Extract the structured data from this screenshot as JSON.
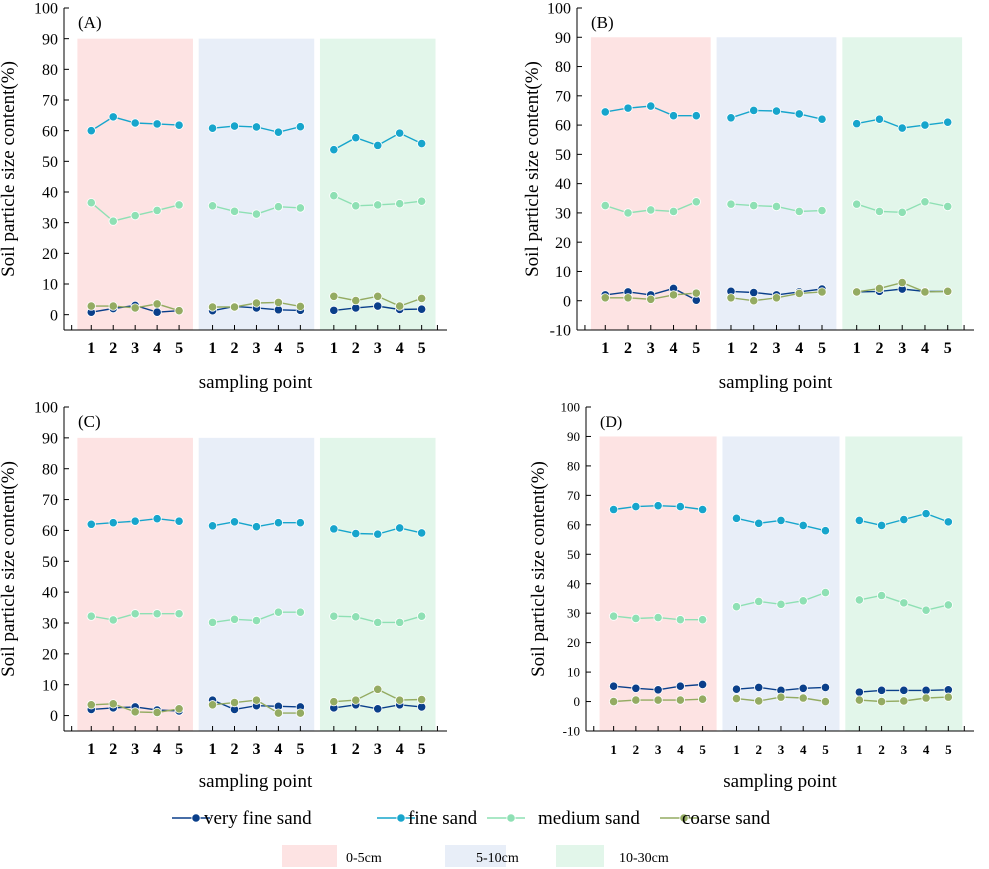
{
  "colors": {
    "very_fine_sand": "#0a3f8a",
    "fine_sand": "#17a5cc",
    "medium_sand": "#8ee0b4",
    "coarse_sand": "#94ab62",
    "depth_0_5": "#fde3e3",
    "depth_5_10": "#e8eef8",
    "depth_10_30": "#e2f6ea"
  },
  "legend": {
    "series": [
      "very fine sand",
      "fine sand",
      "medium sand",
      "coarse sand"
    ],
    "depths": [
      "0-5cm",
      "5-10cm",
      "10-30cm"
    ]
  },
  "chart_data": [
    {
      "type": "line",
      "panel": "(A)",
      "xlabel": "sampling point",
      "ylabel": "Soil particle size content(%)",
      "ylim": [
        -5,
        100
      ],
      "yticks": [
        0,
        10,
        20,
        30,
        40,
        50,
        60,
        70,
        80,
        90,
        100
      ],
      "categories": [
        "1",
        "2",
        "3",
        "4",
        "5"
      ],
      "groups": [
        "0-5cm",
        "5-10cm",
        "10-30cm"
      ],
      "series": [
        {
          "name": "very fine sand",
          "values": [
            [
              0.8,
              2.0,
              3.0,
              0.8,
              1.3
            ],
            [
              1.3,
              2.7,
              2.2,
              1.6,
              1.4
            ],
            [
              1.4,
              2.2,
              2.8,
              1.7,
              1.8
            ]
          ]
        },
        {
          "name": "fine sand",
          "values": [
            [
              60.0,
              64.5,
              62.5,
              62.2,
              61.8
            ],
            [
              60.8,
              61.5,
              61.2,
              59.5,
              61.3
            ],
            [
              53.8,
              57.7,
              55.2,
              59.2,
              55.8
            ]
          ]
        },
        {
          "name": "medium sand",
          "values": [
            [
              36.5,
              30.5,
              32.3,
              34.0,
              35.8
            ],
            [
              35.5,
              33.7,
              32.8,
              35.2,
              34.8
            ],
            [
              38.8,
              35.5,
              35.8,
              36.2,
              37.0
            ]
          ]
        },
        {
          "name": "coarse sand",
          "values": [
            [
              2.8,
              2.8,
              2.2,
              3.5,
              1.3
            ],
            [
              2.5,
              2.5,
              3.8,
              4.0,
              2.7
            ],
            [
              6.0,
              4.6,
              6.0,
              2.8,
              5.3
            ]
          ]
        }
      ]
    },
    {
      "type": "line",
      "panel": "(B)",
      "xlabel": "sampling point",
      "ylabel": "Soil particle size content(%)",
      "ylim": [
        -10,
        100
      ],
      "yticks": [
        -10,
        0,
        10,
        20,
        30,
        40,
        50,
        60,
        70,
        80,
        90,
        100
      ],
      "categories": [
        "1",
        "2",
        "3",
        "4",
        "5"
      ],
      "groups": [
        "0-5cm",
        "5-10cm",
        "10-30cm"
      ],
      "series": [
        {
          "name": "very fine sand",
          "values": [
            [
              2.0,
              3.0,
              2.0,
              4.2,
              0.2
            ],
            [
              3.2,
              2.8,
              2.0,
              3.0,
              4.0
            ],
            [
              3.0,
              3.2,
              4.0,
              3.2,
              3.2
            ]
          ]
        },
        {
          "name": "fine sand",
          "values": [
            [
              64.5,
              65.8,
              66.5,
              63.2,
              63.2
            ],
            [
              62.5,
              65.0,
              64.8,
              63.8,
              62.0
            ],
            [
              60.5,
              62.0,
              59.0,
              60.0,
              61.0
            ]
          ]
        },
        {
          "name": "medium sand",
          "values": [
            [
              32.5,
              30.0,
              31.0,
              30.5,
              33.8
            ],
            [
              33.0,
              32.5,
              32.2,
              30.5,
              30.8
            ],
            [
              33.0,
              30.5,
              30.2,
              33.8,
              32.2
            ]
          ]
        },
        {
          "name": "coarse sand",
          "values": [
            [
              1.0,
              1.0,
              0.5,
              2.0,
              2.6
            ],
            [
              1.0,
              0.0,
              1.0,
              2.5,
              3.0
            ],
            [
              3.0,
              4.2,
              6.2,
              3.0,
              3.2
            ]
          ]
        }
      ]
    },
    {
      "type": "line",
      "panel": "(C)",
      "xlabel": "sampling point",
      "ylabel": "Soil particle size content(%)",
      "ylim": [
        -5,
        100
      ],
      "yticks": [
        0,
        10,
        20,
        30,
        40,
        50,
        60,
        70,
        80,
        90,
        100
      ],
      "categories": [
        "1",
        "2",
        "3",
        "4",
        "5"
      ],
      "groups": [
        "0-5cm",
        "5-10cm",
        "10-30cm"
      ],
      "series": [
        {
          "name": "very fine sand",
          "values": [
            [
              2.0,
              2.5,
              2.8,
              1.8,
              1.5
            ],
            [
              5.0,
              2.0,
              3.2,
              3.0,
              2.8
            ],
            [
              2.5,
              3.5,
              2.2,
              3.5,
              2.8
            ]
          ]
        },
        {
          "name": "fine sand",
          "values": [
            [
              62.0,
              62.5,
              63.0,
              63.8,
              63.0
            ],
            [
              61.5,
              62.8,
              61.2,
              62.5,
              62.5
            ],
            [
              60.5,
              59.0,
              58.8,
              60.8,
              59.2
            ]
          ]
        },
        {
          "name": "medium sand",
          "values": [
            [
              32.2,
              31.0,
              33.0,
              33.0,
              33.0
            ],
            [
              30.2,
              31.2,
              30.8,
              33.5,
              33.5
            ],
            [
              32.2,
              32.0,
              30.2,
              30.2,
              32.2
            ]
          ]
        },
        {
          "name": "coarse sand",
          "values": [
            [
              3.5,
              3.8,
              1.2,
              1.0,
              2.2
            ],
            [
              3.5,
              4.2,
              5.0,
              0.8,
              0.8
            ],
            [
              4.5,
              5.0,
              8.5,
              5.0,
              5.2
            ]
          ]
        }
      ]
    },
    {
      "type": "line",
      "panel": "(D)",
      "xlabel": "sampling point",
      "ylabel": "Soil particle size content(%)",
      "ylim": [
        -10,
        100
      ],
      "yticks": [
        -10,
        0,
        10,
        20,
        30,
        40,
        50,
        60,
        70,
        80,
        90,
        100
      ],
      "categories": [
        "1",
        "2",
        "3",
        "4",
        "5"
      ],
      "groups": [
        "0-5cm",
        "5-10cm",
        "10-30cm"
      ],
      "series": [
        {
          "name": "very fine sand",
          "values": [
            [
              5.2,
              4.5,
              4.0,
              5.2,
              5.8
            ],
            [
              4.2,
              4.8,
              3.8,
              4.5,
              4.8
            ],
            [
              3.2,
              3.8,
              3.8,
              3.8,
              4.0
            ]
          ]
        },
        {
          "name": "fine sand",
          "values": [
            [
              65.2,
              66.2,
              66.5,
              66.2,
              65.2
            ],
            [
              62.2,
              60.5,
              61.5,
              59.8,
              58.0
            ],
            [
              61.5,
              59.8,
              61.8,
              63.8,
              61.0
            ]
          ]
        },
        {
          "name": "medium sand",
          "values": [
            [
              29.0,
              28.2,
              28.5,
              27.8,
              27.8
            ],
            [
              32.2,
              34.0,
              33.0,
              34.2,
              37.0
            ],
            [
              34.5,
              36.0,
              33.5,
              31.0,
              32.8
            ]
          ]
        },
        {
          "name": "coarse sand",
          "values": [
            [
              0.0,
              0.5,
              0.5,
              0.5,
              0.8
            ],
            [
              1.0,
              0.2,
              1.5,
              1.2,
              0.0
            ],
            [
              0.5,
              0.0,
              0.2,
              1.2,
              1.5
            ]
          ]
        }
      ]
    }
  ]
}
